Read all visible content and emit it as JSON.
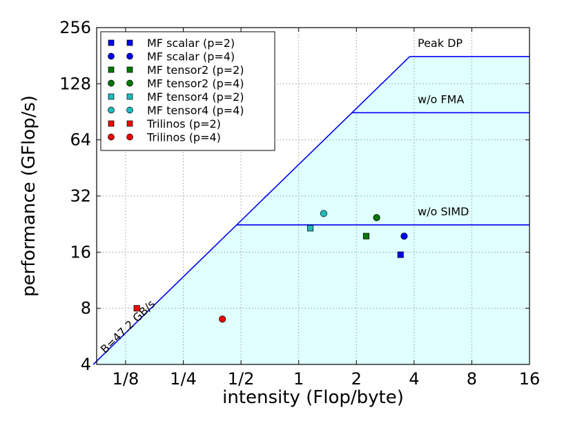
{
  "chart_data": {
    "type": "scatter",
    "title": "",
    "xlabel": "intensity (Flop/byte)",
    "ylabel": "performance (GFlop/s)",
    "xscale": "log2",
    "yscale": "log2",
    "xlim": [
      0.0883,
      16
    ],
    "ylim": [
      4,
      256
    ],
    "grid": true,
    "x_ticks": [
      {
        "value": 0.125,
        "label": "1/8"
      },
      {
        "value": 0.25,
        "label": "1/4"
      },
      {
        "value": 0.5,
        "label": "1/2"
      },
      {
        "value": 1,
        "label": "1"
      },
      {
        "value": 2,
        "label": "2"
      },
      {
        "value": 4,
        "label": "4"
      },
      {
        "value": 8,
        "label": "8"
      },
      {
        "value": 16,
        "label": "16"
      }
    ],
    "y_ticks": [
      {
        "value": 4,
        "label": "4"
      },
      {
        "value": 8,
        "label": "8"
      },
      {
        "value": 16,
        "label": "16"
      },
      {
        "value": 32,
        "label": "32"
      },
      {
        "value": 64,
        "label": "64"
      },
      {
        "value": 128,
        "label": "128"
      },
      {
        "value": 256,
        "label": "256"
      }
    ],
    "roofline": {
      "bandwidth_label": "B=47.2 GB/s",
      "bandwidth_gbs": 47.2,
      "ceilings": [
        {
          "name": "Peak DP",
          "value": 179
        },
        {
          "name": "w/o FMA",
          "value": 89.5
        },
        {
          "name": "w/o SIMD",
          "value": 22.4
        }
      ]
    },
    "series": [
      {
        "name": "MF scalar (p=2)",
        "marker": "square",
        "color": "#0000ee",
        "x": 3.4,
        "y": 15.5
      },
      {
        "name": "MF scalar (p=4)",
        "marker": "circle",
        "color": "#0000ee",
        "x": 3.55,
        "y": 19.5
      },
      {
        "name": "MF tensor2 (p=2)",
        "marker": "square",
        "color": "#007700",
        "x": 2.25,
        "y": 19.5
      },
      {
        "name": "MF tensor2 (p=4)",
        "marker": "circle",
        "color": "#007700",
        "x": 2.55,
        "y": 24.5
      },
      {
        "name": "MF tensor4 (p=2)",
        "marker": "square",
        "color": "#22bbbb",
        "x": 1.15,
        "y": 21.5
      },
      {
        "name": "MF tensor4 (p=4)",
        "marker": "circle",
        "color": "#22bbbb",
        "x": 1.35,
        "y": 25.8
      },
      {
        "name": "Trilinos (p=2)",
        "marker": "square",
        "color": "#ee0000",
        "x": 0.143,
        "y": 8.0
      },
      {
        "name": "Trilinos (p=4)",
        "marker": "circle",
        "color": "#ee0000",
        "x": 0.4,
        "y": 7.0
      }
    ],
    "legend_position": "top-left"
  }
}
